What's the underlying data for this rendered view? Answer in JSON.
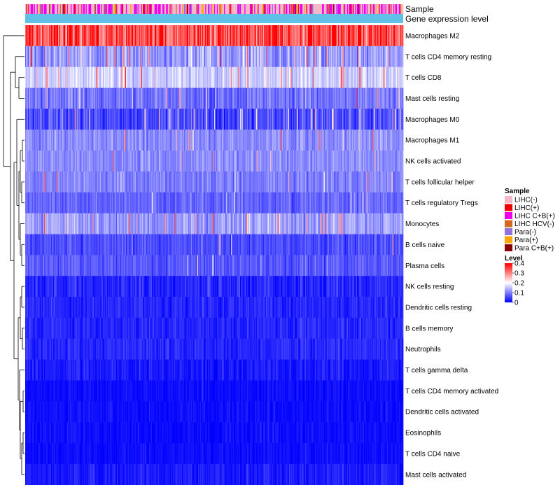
{
  "chart_data": {
    "type": "heatmap",
    "annotation_labels": [
      "Sample",
      "Gene expression level"
    ],
    "rows": [
      {
        "name": "Macrophages M2",
        "mean": 0.32,
        "spread": 0.08,
        "hot": 0.25
      },
      {
        "name": "T cells CD4 memory resting",
        "mean": 0.12,
        "spread": 0.07,
        "hot": 0.06
      },
      {
        "name": "T cells CD8",
        "mean": 0.16,
        "spread": 0.05,
        "hot": 0.05
      },
      {
        "name": "Mast cells resting",
        "mean": 0.09,
        "spread": 0.05,
        "hot": 0.01
      },
      {
        "name": "Macrophages M0",
        "mean": 0.06,
        "spread": 0.06,
        "hot": 0.06
      },
      {
        "name": "Macrophages M1",
        "mean": 0.11,
        "spread": 0.04,
        "hot": 0.02
      },
      {
        "name": "NK cells activated",
        "mean": 0.11,
        "spread": 0.04,
        "hot": 0.01
      },
      {
        "name": "T cells follicular helper",
        "mean": 0.1,
        "spread": 0.04,
        "hot": 0.01
      },
      {
        "name": "T cells regulatory  Tregs",
        "mean": 0.08,
        "spread": 0.04,
        "hot": 0.01
      },
      {
        "name": "Monocytes",
        "mean": 0.12,
        "spread": 0.05,
        "hot": 0.04
      },
      {
        "name": "B cells naive",
        "mean": 0.06,
        "spread": 0.04,
        "hot": 0.01
      },
      {
        "name": "Plasma cells",
        "mean": 0.07,
        "spread": 0.04,
        "hot": 0.01
      },
      {
        "name": "NK cells resting",
        "mean": 0.03,
        "spread": 0.04,
        "hot": 0.0
      },
      {
        "name": "Dendritic cells resting",
        "mean": 0.03,
        "spread": 0.03,
        "hot": 0.0
      },
      {
        "name": "B cells memory",
        "mean": 0.03,
        "spread": 0.03,
        "hot": 0.0
      },
      {
        "name": "Neutrophils",
        "mean": 0.03,
        "spread": 0.03,
        "hot": 0.0
      },
      {
        "name": "T cells gamma delta",
        "mean": 0.02,
        "spread": 0.03,
        "hot": 0.0
      },
      {
        "name": "T cells CD4 memory activated",
        "mean": 0.01,
        "spread": 0.02,
        "hot": 0.0
      },
      {
        "name": "Dendritic cells activated",
        "mean": 0.01,
        "spread": 0.02,
        "hot": 0.0
      },
      {
        "name": "Eosinophils",
        "mean": 0.01,
        "spread": 0.02,
        "hot": 0.0
      },
      {
        "name": "T cells CD4 naive",
        "mean": 0.01,
        "spread": 0.02,
        "hot": 0.0
      },
      {
        "name": "Mast cells activated",
        "mean": 0.02,
        "spread": 0.03,
        "hot": 0.0
      }
    ],
    "n_samples": 424,
    "color_scale": {
      "title": "Level",
      "domain": [
        0,
        0.4
      ],
      "ticks": [
        "0.4",
        "0.3",
        "0.2",
        "0.1",
        "0"
      ],
      "tick_values": [
        0.4,
        0.3,
        0.2,
        0.1,
        0
      ],
      "colors": [
        "#0000ff",
        "#ffffff",
        "#ff0000"
      ]
    },
    "sample_legend": {
      "title": "Sample",
      "items": [
        {
          "label": "LIHC(-)",
          "color": "#f5b8c8"
        },
        {
          "label": "LIHC(+)",
          "color": "#ee0000"
        },
        {
          "label": "LIHC C+B(+)",
          "color": "#ee00ee"
        },
        {
          "label": "LIHC HCV(-)",
          "color": "#d2691e"
        },
        {
          "label": "Para(-)",
          "color": "#9370db"
        },
        {
          "label": "Para(+)",
          "color": "#ffa500"
        },
        {
          "label": "Para C+B(+)",
          "color": "#8b0000"
        }
      ],
      "weights": [
        0.5,
        0.04,
        0.33,
        0.04,
        0.03,
        0.05,
        0.01
      ]
    },
    "expression_bar_color": "#5fc0e8",
    "dendrogram": {
      "leaf_order": "as listed",
      "style": "hierarchical clustering"
    }
  }
}
